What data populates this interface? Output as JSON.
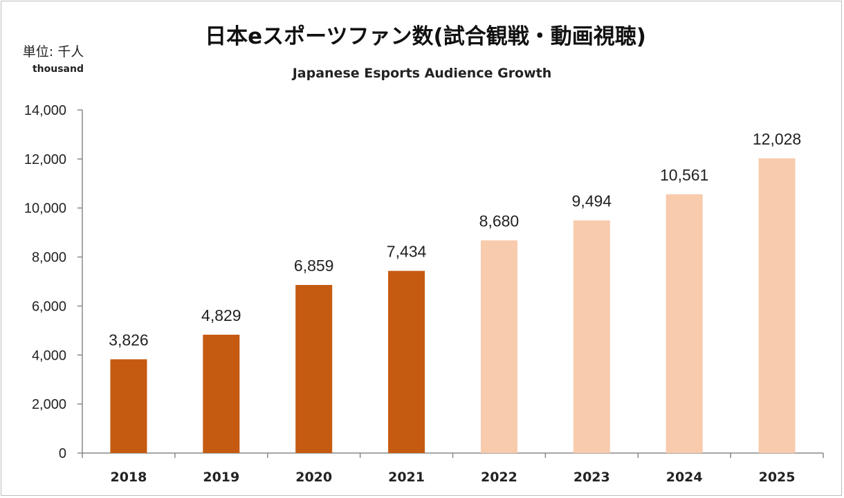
{
  "chart_data": {
    "type": "bar",
    "title": "日本eスポーツファン数(試合観戦・動画視聴)",
    "subtitle": "Japanese Esports Audience Growth",
    "unit_label": "単位: 千人",
    "unit_label_en": "thousand",
    "categories": [
      "2018",
      "2019",
      "2020",
      "2021",
      "2022",
      "2023",
      "2024",
      "2025"
    ],
    "values": [
      3826,
      4829,
      6859,
      7434,
      8680,
      9494,
      10561,
      12028
    ],
    "data_labels": [
      "3,826",
      "4,829",
      "6,859",
      "7,434",
      "8,680",
      "9,494",
      "10,561",
      "12,028"
    ],
    "ylim": [
      0,
      14000
    ],
    "yticks": [
      0,
      2000,
      4000,
      6000,
      8000,
      10000,
      12000,
      14000
    ],
    "ytick_labels": [
      "0",
      "2,000",
      "4,000",
      "6,000",
      "8,000",
      "10,000",
      "12,000",
      "14,000"
    ],
    "bar_colors": [
      "#c55a11",
      "#c55a11",
      "#c55a11",
      "#c55a11",
      "#f8cbad",
      "#f8cbad",
      "#f8cbad",
      "#f8cbad"
    ],
    "grid": false,
    "legend": "none",
    "xlabel": "",
    "ylabel": ""
  }
}
